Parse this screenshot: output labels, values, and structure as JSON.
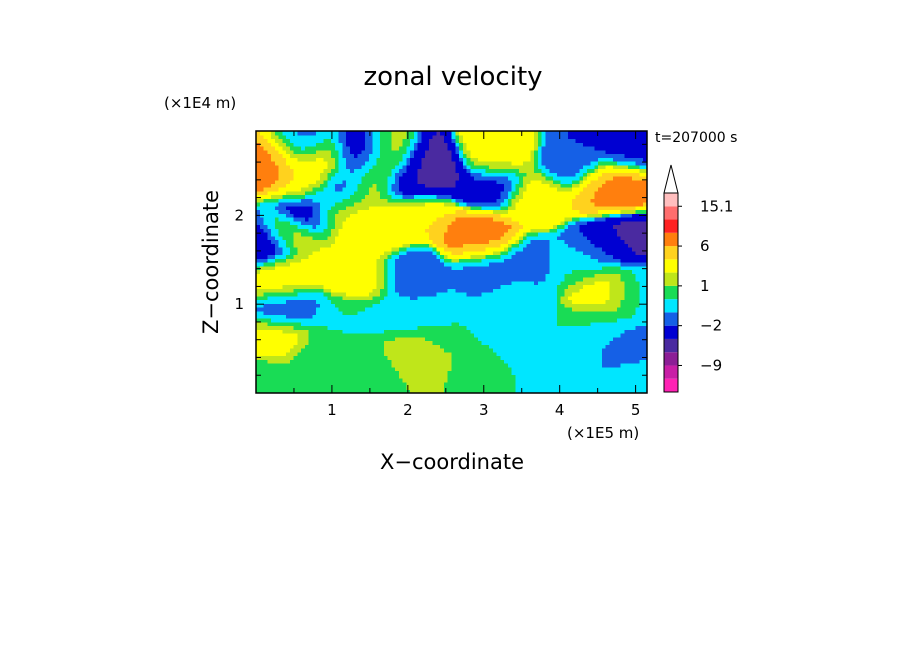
{
  "chart_data": {
    "type": "heatmap",
    "title": "zonal velocity",
    "xlabel": "X−coordinate",
    "ylabel": "Z−coordinate",
    "x_scale_label": "(×1E5 m)",
    "y_scale_label": "(×1E4 m)",
    "time_label": "t=207000 s",
    "xlim": [
      0,
      5.15
    ],
    "ylim": [
      0,
      2.95
    ],
    "x_ticks": [
      1,
      2,
      3,
      4,
      5
    ],
    "x_tick_labels": [
      "1",
      "2",
      "3",
      "4",
      "5"
    ],
    "y_ticks": [
      1,
      2
    ],
    "y_tick_labels": [
      "1",
      "2"
    ],
    "colorbar": {
      "levels": [
        -13,
        -11,
        -9,
        -7,
        -4.5,
        -2,
        -1,
        0,
        1,
        2,
        4,
        6,
        9,
        12,
        15.1
      ],
      "colors": [
        "#ff22b4",
        "#c81ea6",
        "#8c1e96",
        "#4a2aa0",
        "#0000d2",
        "#1560e6",
        "#00e6ff",
        "#19dc55",
        "#bfe61a",
        "#ffff00",
        "#ffd21e",
        "#ff7f0e",
        "#ff2222",
        "#ff6e6e",
        "#ffbebe"
      ],
      "labels": [
        "15.1",
        "6",
        "1",
        "−2",
        "−9"
      ],
      "label_values": [
        15.1,
        6,
        1,
        -2,
        -9
      ],
      "extend": "max"
    },
    "field_features": [
      {
        "x": 0.2,
        "z": 2.6,
        "value": 8
      },
      {
        "x": 0.55,
        "z": 2.75,
        "value": -1.5
      },
      {
        "x": 0.65,
        "z": 2.35,
        "value": 4
      },
      {
        "x": 0.9,
        "z": 2.55,
        "value": 4
      },
      {
        "x": 1.1,
        "z": 2.3,
        "value": -5
      },
      {
        "x": 1.05,
        "z": 2.05,
        "value": 3
      },
      {
        "x": 1.35,
        "z": 2.6,
        "value": -4
      },
      {
        "x": 1.3,
        "z": 2.2,
        "value": 2
      },
      {
        "x": 1.55,
        "z": 2.4,
        "value": 3
      },
      {
        "x": 1.75,
        "z": 2.6,
        "value": 2
      },
      {
        "x": 2.0,
        "z": 2.35,
        "value": -5
      },
      {
        "x": 2.3,
        "z": 2.5,
        "value": -6
      },
      {
        "x": 2.1,
        "z": 2.05,
        "value": 4
      },
      {
        "x": 0.7,
        "z": 2.05,
        "value": -5
      },
      {
        "x": 0.4,
        "z": 1.8,
        "value": 3
      },
      {
        "x": 0.1,
        "z": 1.7,
        "value": -5
      },
      {
        "x": 1.6,
        "z": 1.85,
        "value": 4
      },
      {
        "x": 3.1,
        "z": 2.35,
        "value": -3
      },
      {
        "x": 3.15,
        "z": 2.65,
        "value": 3
      },
      {
        "x": 2.95,
        "z": 1.75,
        "value": 7
      },
      {
        "x": 3.7,
        "z": 2.2,
        "value": 3
      },
      {
        "x": 4.2,
        "z": 2.55,
        "value": -2
      },
      {
        "x": 4.6,
        "z": 2.3,
        "value": 6
      },
      {
        "x": 4.85,
        "z": 2.3,
        "value": 8
      },
      {
        "x": 4.95,
        "z": 2.7,
        "value": -2.5
      },
      {
        "x": 4.9,
        "z": 1.8,
        "value": -5.5
      },
      {
        "x": 4.5,
        "z": 1.65,
        "value": -2
      },
      {
        "x": 0.3,
        "z": 1.3,
        "value": 3
      },
      {
        "x": 1.4,
        "z": 1.35,
        "value": 3
      },
      {
        "x": 2.0,
        "z": 1.35,
        "value": -2
      },
      {
        "x": 3.05,
        "z": 1.4,
        "value": -1.8
      },
      {
        "x": 3.55,
        "z": 1.45,
        "value": -1.5
      },
      {
        "x": 3.4,
        "z": 1.1,
        "value": -0.5
      },
      {
        "x": 4.25,
        "z": 1.45,
        "value": 0
      },
      {
        "x": 4.6,
        "z": 1.15,
        "value": 3
      },
      {
        "x": 5.0,
        "z": 1.15,
        "value": -0.5
      },
      {
        "x": 0.4,
        "z": 0.95,
        "value": -1.8
      },
      {
        "x": 1.2,
        "z": 0.8,
        "value": 0
      },
      {
        "x": 1.9,
        "z": 0.85,
        "value": -0.5
      },
      {
        "x": 2.5,
        "z": 0.8,
        "value": 0
      },
      {
        "x": 4.55,
        "z": 0.75,
        "value": 0
      },
      {
        "x": 4.8,
        "z": 0.5,
        "value": -2
      },
      {
        "x": 4.3,
        "z": 0.55,
        "value": 0
      },
      {
        "x": 0.3,
        "z": 0.6,
        "value": 3
      },
      {
        "x": 0.8,
        "z": 0.4,
        "value": 0
      },
      {
        "x": 1.5,
        "z": 0.3,
        "value": 0
      },
      {
        "x": 2.0,
        "z": 0.45,
        "value": 2
      },
      {
        "x": 0.1,
        "z": 0.15,
        "value": 0
      },
      {
        "x": 3.2,
        "z": 0.25,
        "value": 0
      },
      {
        "x": 4.95,
        "z": 0.15,
        "value": 0
      }
    ]
  }
}
